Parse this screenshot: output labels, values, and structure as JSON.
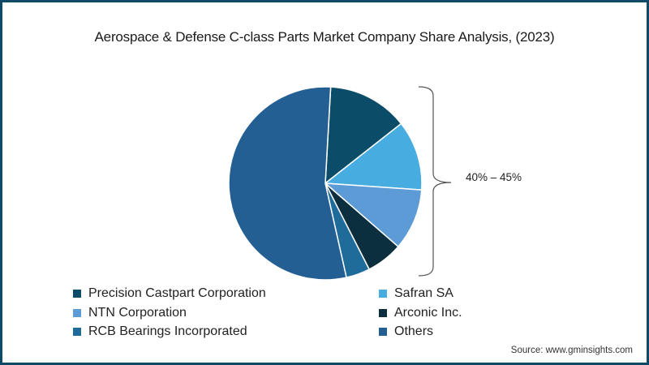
{
  "chart_data": {
    "type": "pie",
    "title": "Aerospace & Defense C-class Parts Market Company Share Analysis, (2023)",
    "start_angle_deg": 3.2,
    "slices": [
      {
        "label": "Precision Castpart Corporation",
        "value": 13.5,
        "color": "#0b4d68"
      },
      {
        "label": "Safran SA",
        "value": 11.7,
        "color": "#47ade0"
      },
      {
        "label": "NTN Corporation",
        "value": 10.3,
        "color": "#5d9bd6"
      },
      {
        "label": "Arconic Inc.",
        "value": 6.1,
        "color": "#0b2f3f"
      },
      {
        "label": "RCB Bearings Incorporated",
        "value": 4.0,
        "color": "#1f6c9a"
      },
      {
        "label": "Others",
        "value": 54.4,
        "color": "#245f94"
      }
    ],
    "annotation": {
      "text": "40% – 45%",
      "applies_to": [
        "Precision Castpart Corporation",
        "Safran SA",
        "NTN Corporation",
        "Arconic Inc.",
        "RCB Bearings Incorporated"
      ]
    },
    "legend_position": "bottom"
  },
  "title": "Aerospace & Defense C-class Parts Market Company Share Analysis, (2023)",
  "annotation_label": "40% – 45%",
  "legend": [
    {
      "label": "Precision Castpart Corporation",
      "color": "#0b4d68"
    },
    {
      "label": "Safran SA",
      "color": "#47ade0"
    },
    {
      "label": "NTN Corporation",
      "color": "#5d9bd6"
    },
    {
      "label": "Arconic Inc.",
      "color": "#0b2f3f"
    },
    {
      "label": "RCB Bearings Incorporated",
      "color": "#1f6c9a"
    },
    {
      "label": "Others",
      "color": "#245f94"
    }
  ],
  "source": "Source: www.gminsights.com",
  "colors": {
    "frame": "#0e4a66"
  }
}
